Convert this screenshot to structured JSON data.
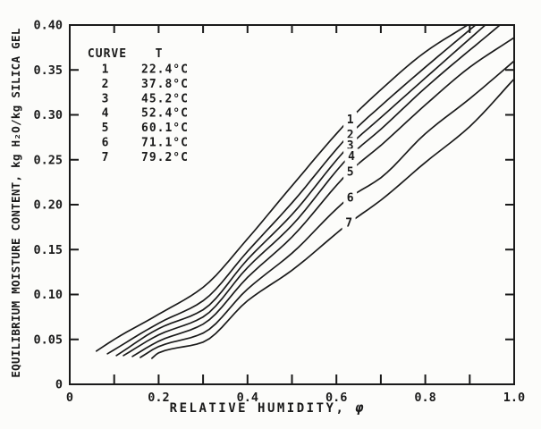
{
  "figure": {
    "background": "#fcfcfa",
    "ink": "#1a1a1a"
  },
  "chart_data": {
    "type": "line",
    "title": "",
    "xlabel": "RELATIVE HUMIDITY, φ",
    "xlabel_parts": {
      "text": "RELATIVE HUMIDITY,",
      "symbol": "φ"
    },
    "ylabel": "EQUILIBRIUM MOISTURE CONTENT, kg H₂O/kg SILICA GEL",
    "xlim": [
      0,
      1.0
    ],
    "ylim": [
      0,
      0.4
    ],
    "x_tick_step": 0.1,
    "y_tick_step": 0.05,
    "grid": false,
    "x_ticklabels": [
      {
        "v": 0,
        "t": "0"
      },
      {
        "v": 0.2,
        "t": "0.2"
      },
      {
        "v": 0.4,
        "t": "0.4"
      },
      {
        "v": 0.6,
        "t": "0.6"
      },
      {
        "v": 0.8,
        "t": "0.8"
      },
      {
        "v": 1.0,
        "t": "1.0"
      }
    ],
    "y_ticklabels": [
      {
        "v": 0.4,
        "t": "0.40"
      },
      {
        "v": 0.35,
        "t": "0.35"
      },
      {
        "v": 0.3,
        "t": "0.30"
      },
      {
        "v": 0.25,
        "t": "0.25"
      },
      {
        "v": 0.2,
        "t": "0.20"
      },
      {
        "v": 0.15,
        "t": "0.15"
      },
      {
        "v": 0.1,
        "t": "0.10"
      },
      {
        "v": 0.05,
        "t": "0.05"
      },
      {
        "v": 0,
        "t": "0"
      }
    ],
    "legend": {
      "position": "upper-left",
      "header": [
        "CURVE",
        "T"
      ]
    },
    "series": [
      {
        "curve": "1",
        "T": "22.4°C",
        "label_at": [
          0.631,
          0.295
        ],
        "points": [
          [
            0.06,
            0.037
          ],
          [
            0.1,
            0.05
          ],
          [
            0.2,
            0.078
          ],
          [
            0.3,
            0.108
          ],
          [
            0.4,
            0.162
          ],
          [
            0.5,
            0.221
          ],
          [
            0.63,
            0.295
          ],
          [
            0.7,
            0.328
          ],
          [
            0.8,
            0.37
          ],
          [
            0.895,
            0.4
          ]
        ]
      },
      {
        "curve": "2",
        "T": "37.8°C",
        "label_at": [
          0.631,
          0.278
        ],
        "points": [
          [
            0.085,
            0.034
          ],
          [
            0.2,
            0.068
          ],
          [
            0.3,
            0.093
          ],
          [
            0.4,
            0.148
          ],
          [
            0.5,
            0.202
          ],
          [
            0.63,
            0.278
          ],
          [
            0.7,
            0.31
          ],
          [
            0.8,
            0.353
          ],
          [
            0.913,
            0.4
          ]
        ]
      },
      {
        "curve": "3",
        "T": "45.2°C",
        "label_at": [
          0.631,
          0.266
        ],
        "points": [
          [
            0.105,
            0.032
          ],
          [
            0.2,
            0.062
          ],
          [
            0.3,
            0.083
          ],
          [
            0.4,
            0.139
          ],
          [
            0.5,
            0.189
          ],
          [
            0.63,
            0.266
          ],
          [
            0.7,
            0.297
          ],
          [
            0.8,
            0.341
          ],
          [
            0.935,
            0.4
          ]
        ]
      },
      {
        "curve": "4",
        "T": "52.4°C",
        "label_at": [
          0.634,
          0.254
        ],
        "points": [
          [
            0.121,
            0.032
          ],
          [
            0.2,
            0.055
          ],
          [
            0.3,
            0.075
          ],
          [
            0.4,
            0.13
          ],
          [
            0.5,
            0.177
          ],
          [
            0.63,
            0.254
          ],
          [
            0.7,
            0.284
          ],
          [
            0.8,
            0.33
          ],
          [
            0.968,
            0.4
          ]
        ]
      },
      {
        "curve": "5",
        "T": "60.1°C",
        "label_at": [
          0.631,
          0.237
        ],
        "points": [
          [
            0.141,
            0.031
          ],
          [
            0.2,
            0.048
          ],
          [
            0.3,
            0.067
          ],
          [
            0.4,
            0.119
          ],
          [
            0.5,
            0.164
          ],
          [
            0.63,
            0.237
          ],
          [
            0.7,
            0.266
          ],
          [
            0.8,
            0.311
          ],
          [
            0.9,
            0.353
          ],
          [
            1.0,
            0.386
          ]
        ]
      },
      {
        "curve": "6",
        "T": "71.1°C",
        "label_at": [
          0.631,
          0.208
        ],
        "points": [
          [
            0.159,
            0.03
          ],
          [
            0.2,
            0.042
          ],
          [
            0.3,
            0.057
          ],
          [
            0.4,
            0.106
          ],
          [
            0.5,
            0.146
          ],
          [
            0.63,
            0.208
          ],
          [
            0.7,
            0.23
          ],
          [
            0.8,
            0.279
          ],
          [
            0.9,
            0.318
          ],
          [
            1.0,
            0.36
          ]
        ]
      },
      {
        "curve": "7",
        "T": "79.2°C",
        "label_at": [
          0.628,
          0.18
        ],
        "points": [
          [
            0.185,
            0.029
          ],
          [
            0.2,
            0.035
          ],
          [
            0.3,
            0.047
          ],
          [
            0.4,
            0.093
          ],
          [
            0.5,
            0.127
          ],
          [
            0.63,
            0.18
          ],
          [
            0.7,
            0.205
          ],
          [
            0.8,
            0.247
          ],
          [
            0.9,
            0.287
          ],
          [
            1.0,
            0.34
          ]
        ]
      }
    ]
  }
}
